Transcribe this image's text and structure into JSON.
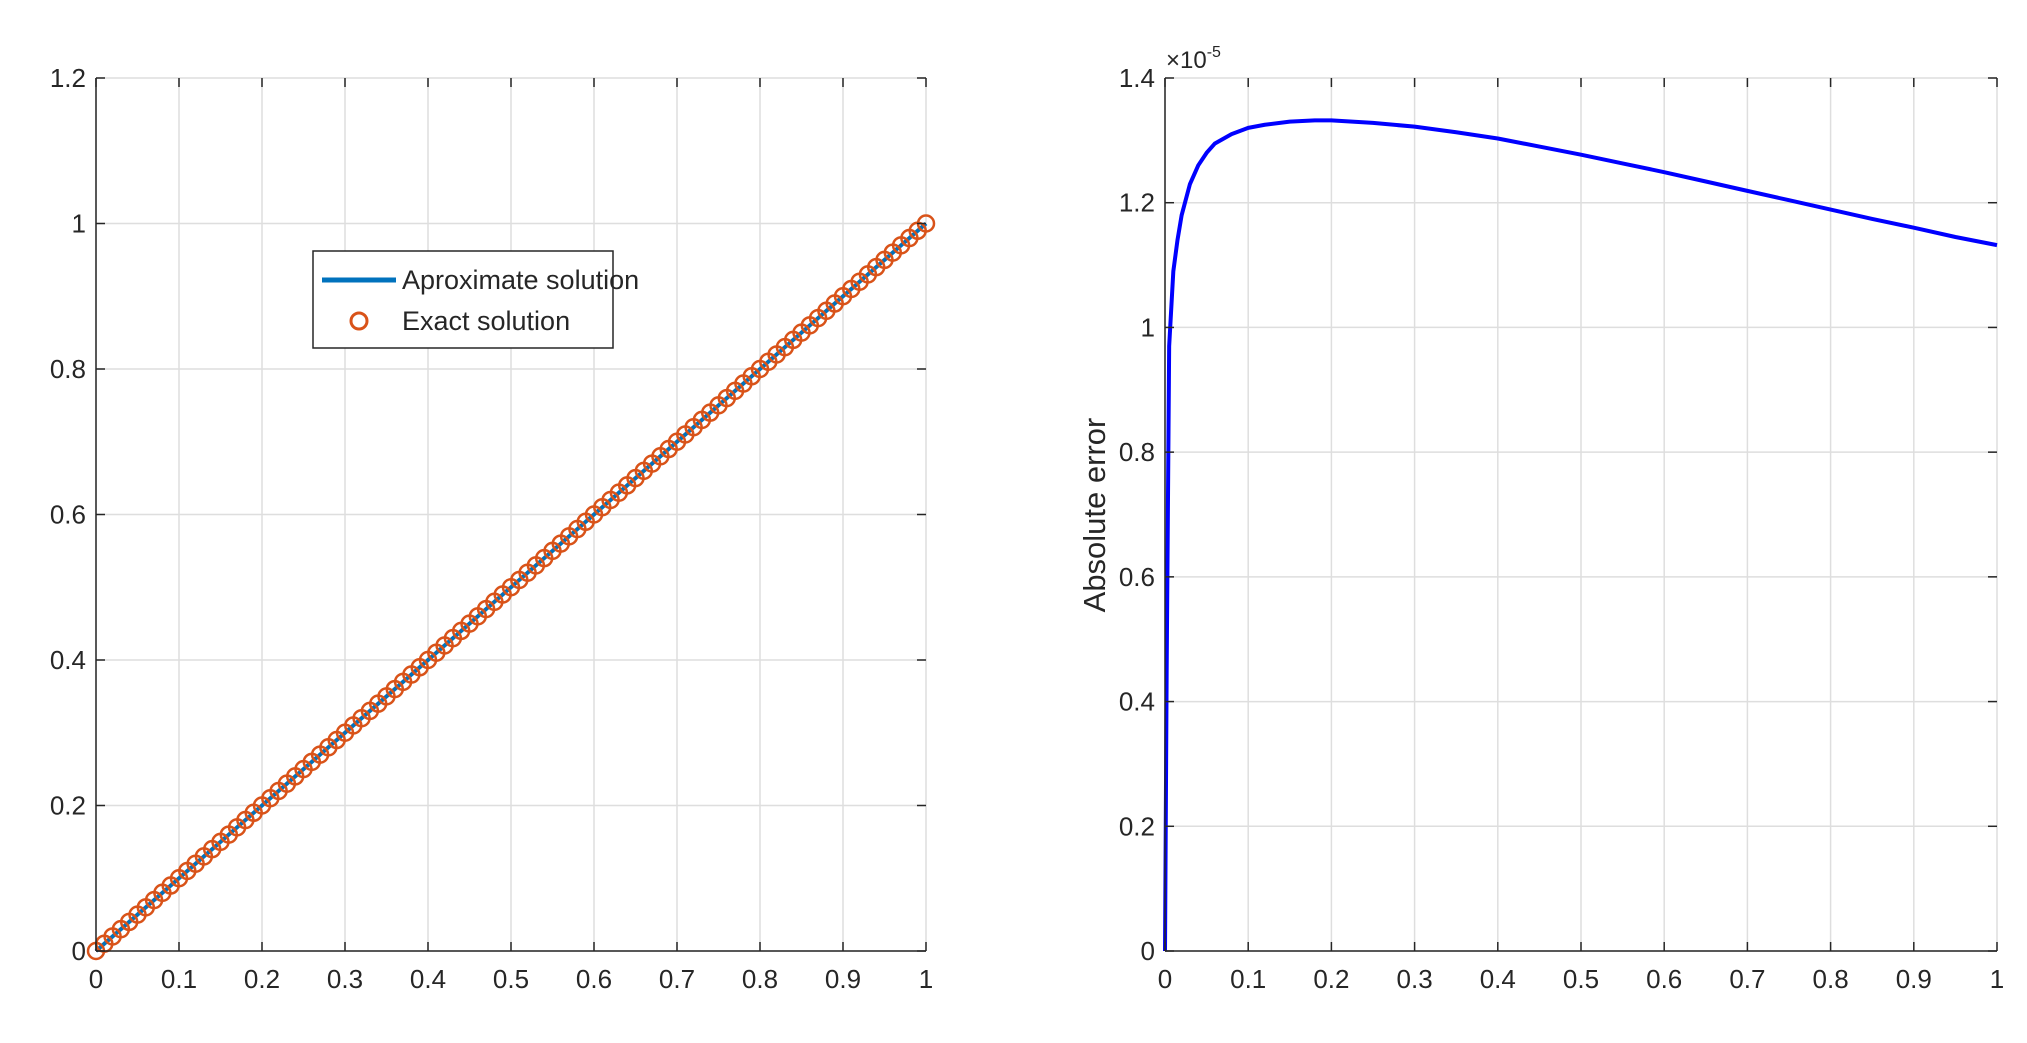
{
  "chart_data": [
    {
      "type": "line",
      "xlim": [
        0,
        1
      ],
      "ylim": [
        0,
        1.2
      ],
      "xticks": [
        "0",
        "0.1",
        "0.2",
        "0.3",
        "0.4",
        "0.5",
        "0.6",
        "0.7",
        "0.8",
        "0.9",
        "1"
      ],
      "yticks": [
        "0",
        "0.2",
        "0.4",
        "0.6",
        "0.8",
        "1",
        "1.2"
      ],
      "grid": true,
      "legend_position": "upper-center",
      "series": [
        {
          "name": "Aproximate solution",
          "style": "line",
          "color": "#0072BD",
          "function": "y = x",
          "x": [
            0,
            1
          ],
          "y": [
            0,
            1
          ]
        },
        {
          "name": "Exact solution",
          "style": "markers",
          "marker": "circle",
          "color": "#D95319",
          "function": "y = x",
          "x_start": 0,
          "x_end": 1,
          "x_step": 0.01
        }
      ]
    },
    {
      "type": "line",
      "xlim": [
        0,
        1
      ],
      "ylim": [
        0,
        1.4
      ],
      "xticks": [
        "0",
        "0.1",
        "0.2",
        "0.3",
        "0.4",
        "0.5",
        "0.6",
        "0.7",
        "0.8",
        "0.9",
        "1"
      ],
      "yticks": [
        "0",
        "0.2",
        "0.4",
        "0.6",
        "0.8",
        "1",
        "1.2",
        "1.4"
      ],
      "ylabel": "Absolute error",
      "y_exponent_base": "×10",
      "y_exponent_power": "-5",
      "grid": true,
      "series": [
        {
          "color": "#0000FF",
          "x": [
            0,
            0.002,
            0.005,
            0.01,
            0.015,
            0.02,
            0.03,
            0.04,
            0.05,
            0.06,
            0.08,
            0.1,
            0.12,
            0.15,
            0.18,
            0.2,
            0.25,
            0.3,
            0.35,
            0.4,
            0.45,
            0.5,
            0.55,
            0.6,
            0.65,
            0.7,
            0.75,
            0.8,
            0.85,
            0.9,
            0.95,
            1.0
          ],
          "y": [
            0,
            0.45,
            0.97,
            1.09,
            1.14,
            1.18,
            1.23,
            1.26,
            1.28,
            1.295,
            1.31,
            1.32,
            1.325,
            1.33,
            1.332,
            1.332,
            1.328,
            1.322,
            1.313,
            1.303,
            1.29,
            1.277,
            1.263,
            1.249,
            1.234,
            1.219,
            1.204,
            1.189,
            1.174,
            1.16,
            1.145,
            1.132
          ]
        }
      ]
    }
  ]
}
